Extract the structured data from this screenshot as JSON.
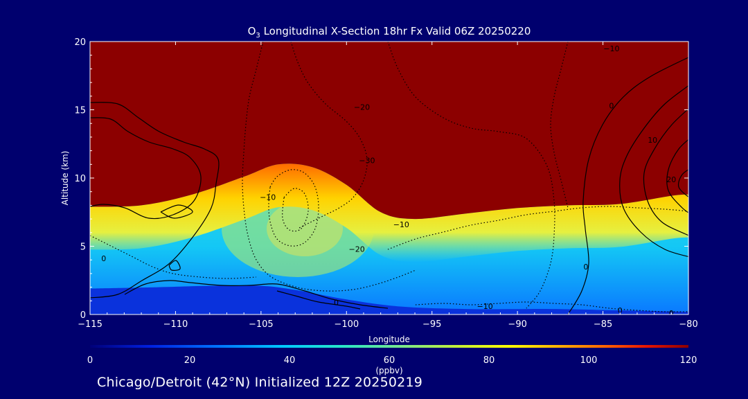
{
  "chart_data": {
    "type": "heatmap",
    "title_prefix": "O",
    "title_sub": "3",
    "title_rest": " Longitudinal X-Section 18hr  Fx Valid 06Z 20250220",
    "xlabel": "Longitude",
    "ylabel": "Altitude (km)",
    "xlim": [
      -115,
      -80
    ],
    "ylim": [
      0,
      20
    ],
    "x_ticks": [
      {
        "value": -115,
        "label": "−115"
      },
      {
        "value": -110,
        "label": "−110"
      },
      {
        "value": -105,
        "label": "−105"
      },
      {
        "value": -100,
        "label": "−100"
      },
      {
        "value": -95,
        "label": "−95"
      },
      {
        "value": -90,
        "label": "−90"
      },
      {
        "value": -85,
        "label": "−85"
      },
      {
        "value": -80,
        "label": "−80"
      }
    ],
    "y_ticks": [
      {
        "value": 0,
        "label": "0"
      },
      {
        "value": 5,
        "label": "5"
      },
      {
        "value": 10,
        "label": "10"
      },
      {
        "value": 15,
        "label": "15"
      },
      {
        "value": 20,
        "label": "20"
      }
    ],
    "colorbar": {
      "min": 0,
      "max": 120,
      "unit_label": "(ppbv)",
      "ticks": [
        {
          "value": 0,
          "label": "0"
        },
        {
          "value": 20,
          "label": "20"
        },
        {
          "value": 40,
          "label": "40"
        },
        {
          "value": 60,
          "label": "60"
        },
        {
          "value": 80,
          "label": "80"
        },
        {
          "value": 100,
          "label": "100"
        },
        {
          "value": 120,
          "label": "120"
        }
      ]
    },
    "tropopause_km": [
      {
        "lon": -115,
        "alt": 7.9
      },
      {
        "lon": -112,
        "alt": 8.0
      },
      {
        "lon": -109,
        "alt": 8.8
      },
      {
        "lon": -106,
        "alt": 10.1
      },
      {
        "lon": -104,
        "alt": 11.0
      },
      {
        "lon": -102,
        "alt": 10.8
      },
      {
        "lon": -100,
        "alt": 9.5
      },
      {
        "lon": -98,
        "alt": 7.5
      },
      {
        "lon": -96,
        "alt": 7.0
      },
      {
        "lon": -93,
        "alt": 7.4
      },
      {
        "lon": -90,
        "alt": 7.8
      },
      {
        "lon": -87,
        "alt": 8.0
      },
      {
        "lon": -84,
        "alt": 8.1
      },
      {
        "lon": -81,
        "alt": 8.7
      },
      {
        "lon": -80,
        "alt": 8.8
      }
    ],
    "surface_km": [
      {
        "lon": -115,
        "alt": 1.9
      },
      {
        "lon": -111,
        "alt": 2.0
      },
      {
        "lon": -108,
        "alt": 2.1
      },
      {
        "lon": -105,
        "alt": 2.1
      },
      {
        "lon": -103,
        "alt": 1.8
      },
      {
        "lon": -100,
        "alt": 1.1
      },
      {
        "lon": -97,
        "alt": 0.6
      },
      {
        "lon": -93,
        "alt": 0.4
      },
      {
        "lon": -88,
        "alt": 0.4
      },
      {
        "lon": -84,
        "alt": 0.3
      },
      {
        "lon": -80,
        "alt": 0.2
      }
    ],
    "contour_labels": [
      {
        "text": "−10",
        "lon": -84.5,
        "alt": 19.5
      },
      {
        "text": "−20",
        "lon": -99.1,
        "alt": 15.2
      },
      {
        "text": "−30",
        "lon": -98.8,
        "alt": 11.3
      },
      {
        "text": "−10",
        "lon": -104.6,
        "alt": 8.6
      },
      {
        "text": "0",
        "lon": -84.5,
        "alt": 15.3
      },
      {
        "text": "10",
        "lon": -82.1,
        "alt": 12.8
      },
      {
        "text": "20",
        "lon": -81.0,
        "alt": 9.9
      },
      {
        "text": "−10",
        "lon": -96.8,
        "alt": 6.6
      },
      {
        "text": "−20",
        "lon": -99.4,
        "alt": 4.8
      },
      {
        "text": "0",
        "lon": -114.2,
        "alt": 4.1
      },
      {
        "text": "0",
        "lon": -86.0,
        "alt": 3.5
      },
      {
        "text": "0",
        "lon": -100.6,
        "alt": 0.9
      },
      {
        "text": "−10",
        "lon": -91.9,
        "alt": 0.6
      },
      {
        "text": "0",
        "lon": -84.0,
        "alt": 0.3
      },
      {
        "text": "0",
        "lon": -81.0,
        "alt": 0.1
      }
    ]
  },
  "footer": "Chicago/Detroit (42°N) Initialized 12Z 20250219"
}
